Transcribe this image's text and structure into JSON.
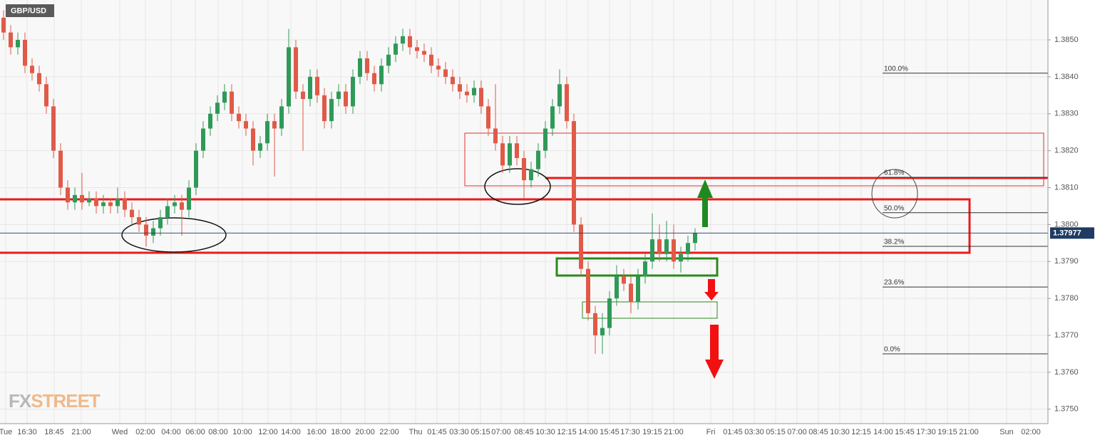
{
  "chart_data": {
    "type": "candlestick",
    "title": "GBP/USD",
    "watermark": [
      "FX",
      "STREET"
    ],
    "up_color": "#2f9a58",
    "down_color": "#e05a47",
    "ylim": [
      1.37461,
      1.38608
    ],
    "yticks": [
      {
        "value": 1.375,
        "label": "1.3750"
      },
      {
        "value": 1.376,
        "label": "1.3760"
      },
      {
        "value": 1.377,
        "label": "1.3770"
      },
      {
        "value": 1.378,
        "label": "1.3780"
      },
      {
        "value": 1.379,
        "label": "1.3790"
      },
      {
        "value": 1.38,
        "label": "1.3800"
      },
      {
        "value": 1.381,
        "label": "1.3810"
      },
      {
        "value": 1.382,
        "label": "1.3820"
      },
      {
        "value": 1.383,
        "label": "1.3830"
      },
      {
        "value": 1.384,
        "label": "1.3840"
      },
      {
        "value": 1.385,
        "label": "1.3850"
      }
    ],
    "last_price": 1.37977,
    "x_labels": [
      "Tue",
      "16:30",
      "18:45",
      "21:00",
      "Wed",
      "02:00",
      "04:00",
      "06:00",
      "08:00",
      "10:00",
      "12:00",
      "14:00",
      "16:00",
      "18:00",
      "20:00",
      "22:00",
      "Thu",
      "01:45",
      "03:30",
      "05:15",
      "07:00",
      "08:45",
      "10:30",
      "12:15",
      "14:00",
      "15:45",
      "17:30",
      "19:15",
      "21:00",
      "Fri",
      "01:45",
      "03:30",
      "05:15",
      "07:00",
      "08:45",
      "10:30",
      "12:15",
      "14:00",
      "15:45",
      "17:30",
      "19:15",
      "21:00",
      "Sun",
      "02:00"
    ],
    "fib_levels": [
      {
        "label": "100.0%",
        "value": 1.3841
      },
      {
        "label": "61.8%",
        "value": 1.38128
      },
      {
        "label": "50.0%",
        "value": 1.38032
      },
      {
        "label": "38.2%",
        "value": 1.37941
      },
      {
        "label": "23.6%",
        "value": 1.37831
      },
      {
        "label": "0.0%",
        "value": 1.3765
      }
    ],
    "candles": [
      [
        1.3856,
        1.3858,
        1.385,
        1.3852
      ],
      [
        1.3852,
        1.3854,
        1.3846,
        1.3848
      ],
      [
        1.3848,
        1.3852,
        1.3846,
        1.385
      ],
      [
        1.385,
        1.3852,
        1.3841,
        1.3843
      ],
      [
        1.3843,
        1.3845,
        1.3839,
        1.3841
      ],
      [
        1.3841,
        1.3843,
        1.3836,
        1.3838
      ],
      [
        1.3838,
        1.384,
        1.383,
        1.3832
      ],
      [
        1.3832,
        1.3834,
        1.3818,
        1.382
      ],
      [
        1.382,
        1.3822,
        1.3808,
        1.381
      ],
      [
        1.381,
        1.3812,
        1.3804,
        1.3806
      ],
      [
        1.3806,
        1.381,
        1.3804,
        1.3808
      ],
      [
        1.3808,
        1.3814,
        1.3804,
        1.3806
      ],
      [
        1.3806,
        1.3809,
        1.3805,
        1.3807
      ],
      [
        1.3807,
        1.3809,
        1.3803,
        1.3805
      ],
      [
        1.3805,
        1.3808,
        1.3803,
        1.3806
      ],
      [
        1.3806,
        1.3807,
        1.3803,
        1.3805
      ],
      [
        1.3805,
        1.381,
        1.3803,
        1.3807
      ],
      [
        1.3807,
        1.3809,
        1.3802,
        1.3804
      ],
      [
        1.3804,
        1.3806,
        1.38,
        1.3802
      ],
      [
        1.3802,
        1.3804,
        1.3798,
        1.38
      ],
      [
        1.38,
        1.3802,
        1.3794,
        1.3797
      ],
      [
        1.3797,
        1.3801,
        1.3795,
        1.3799
      ],
      [
        1.3799,
        1.3804,
        1.3797,
        1.3802
      ],
      [
        1.3802,
        1.3807,
        1.38,
        1.3805
      ],
      [
        1.3805,
        1.3808,
        1.3803,
        1.3806
      ],
      [
        1.3806,
        1.3808,
        1.3797,
        1.3804
      ],
      [
        1.3804,
        1.3812,
        1.3802,
        1.381
      ],
      [
        1.381,
        1.3822,
        1.3808,
        1.382
      ],
      [
        1.382,
        1.3828,
        1.3818,
        1.3826
      ],
      [
        1.3826,
        1.3832,
        1.3824,
        1.383
      ],
      [
        1.383,
        1.3835,
        1.3828,
        1.3833
      ],
      [
        1.3833,
        1.3838,
        1.3831,
        1.3836
      ],
      [
        1.3836,
        1.3838,
        1.3828,
        1.383
      ],
      [
        1.383,
        1.3832,
        1.3826,
        1.3828
      ],
      [
        1.3828,
        1.383,
        1.3824,
        1.3826
      ],
      [
        1.3826,
        1.3828,
        1.3816,
        1.382
      ],
      [
        1.382,
        1.3824,
        1.3818,
        1.3822
      ],
      [
        1.3822,
        1.383,
        1.382,
        1.3828
      ],
      [
        1.3828,
        1.383,
        1.3813,
        1.3826
      ],
      [
        1.3826,
        1.3834,
        1.3824,
        1.3832
      ],
      [
        1.3832,
        1.3853,
        1.383,
        1.3848
      ],
      [
        1.3848,
        1.385,
        1.3834,
        1.3836
      ],
      [
        1.3836,
        1.3838,
        1.382,
        1.3834
      ],
      [
        1.3834,
        1.3842,
        1.3832,
        1.384
      ],
      [
        1.384,
        1.3842,
        1.3833,
        1.3835
      ],
      [
        1.3835,
        1.3837,
        1.3826,
        1.3828
      ],
      [
        1.3828,
        1.3836,
        1.3826,
        1.3834
      ],
      [
        1.3834,
        1.3838,
        1.3832,
        1.3836
      ],
      [
        1.3836,
        1.3838,
        1.383,
        1.3832
      ],
      [
        1.3832,
        1.3842,
        1.383,
        1.384
      ],
      [
        1.384,
        1.3847,
        1.3838,
        1.3845
      ],
      [
        1.3845,
        1.3847,
        1.3839,
        1.3841
      ],
      [
        1.3841,
        1.3843,
        1.3836,
        1.3838
      ],
      [
        1.3838,
        1.3845,
        1.3836,
        1.3843
      ],
      [
        1.3843,
        1.3848,
        1.3841,
        1.3846
      ],
      [
        1.3846,
        1.3851,
        1.3844,
        1.3849
      ],
      [
        1.3849,
        1.3853,
        1.3847,
        1.3851
      ],
      [
        1.3851,
        1.3853,
        1.3846,
        1.3848
      ],
      [
        1.3848,
        1.385,
        1.3845,
        1.3847
      ],
      [
        1.3847,
        1.3849,
        1.3844,
        1.3846
      ],
      [
        1.3846,
        1.3848,
        1.3841,
        1.3843
      ],
      [
        1.3843,
        1.3845,
        1.384,
        1.3842
      ],
      [
        1.3842,
        1.3844,
        1.3838,
        1.384
      ],
      [
        1.384,
        1.3842,
        1.3836,
        1.3838
      ],
      [
        1.3838,
        1.384,
        1.3834,
        1.3836
      ],
      [
        1.3836,
        1.3838,
        1.3833,
        1.3835
      ],
      [
        1.3835,
        1.3839,
        1.3833,
        1.3837
      ],
      [
        1.3837,
        1.3839,
        1.383,
        1.3832
      ],
      [
        1.3832,
        1.3834,
        1.3824,
        1.3826
      ],
      [
        1.3826,
        1.3838,
        1.382,
        1.3822
      ],
      [
        1.3822,
        1.3824,
        1.3814,
        1.3816
      ],
      [
        1.3816,
        1.3824,
        1.3814,
        1.3822
      ],
      [
        1.3822,
        1.3824,
        1.3816,
        1.3818
      ],
      [
        1.3818,
        1.382,
        1.3807,
        1.3812
      ],
      [
        1.3812,
        1.3817,
        1.381,
        1.3815
      ],
      [
        1.3815,
        1.3822,
        1.3813,
        1.382
      ],
      [
        1.382,
        1.3828,
        1.3818,
        1.3826
      ],
      [
        1.3826,
        1.3834,
        1.3824,
        1.3832
      ],
      [
        1.3832,
        1.3842,
        1.383,
        1.3838
      ],
      [
        1.3838,
        1.384,
        1.3826,
        1.3828
      ],
      [
        1.3828,
        1.383,
        1.3798,
        1.38
      ],
      [
        1.38,
        1.3802,
        1.3786,
        1.3788
      ],
      [
        1.3788,
        1.379,
        1.3774,
        1.3776
      ],
      [
        1.3776,
        1.3778,
        1.3765,
        1.377
      ],
      [
        1.377,
        1.3776,
        1.3765,
        1.3772
      ],
      [
        1.3772,
        1.3782,
        1.377,
        1.378
      ],
      [
        1.378,
        1.3789,
        1.3778,
        1.3786
      ],
      [
        1.3786,
        1.3788,
        1.3782,
        1.3784
      ],
      [
        1.3784,
        1.3786,
        1.3776,
        1.3779
      ],
      [
        1.3779,
        1.3788,
        1.3777,
        1.3786
      ],
      [
        1.3786,
        1.3792,
        1.3784,
        1.379
      ],
      [
        1.379,
        1.3803,
        1.3788,
        1.3796
      ],
      [
        1.3796,
        1.38,
        1.379,
        1.3792
      ],
      [
        1.3792,
        1.3801,
        1.379,
        1.3796
      ],
      [
        1.3796,
        1.38,
        1.3788,
        1.379
      ],
      [
        1.379,
        1.3794,
        1.3787,
        1.3792
      ],
      [
        1.3792,
        1.3797,
        1.379,
        1.3795
      ],
      [
        1.3795,
        1.3799,
        1.3793,
        1.37977
      ]
    ]
  }
}
